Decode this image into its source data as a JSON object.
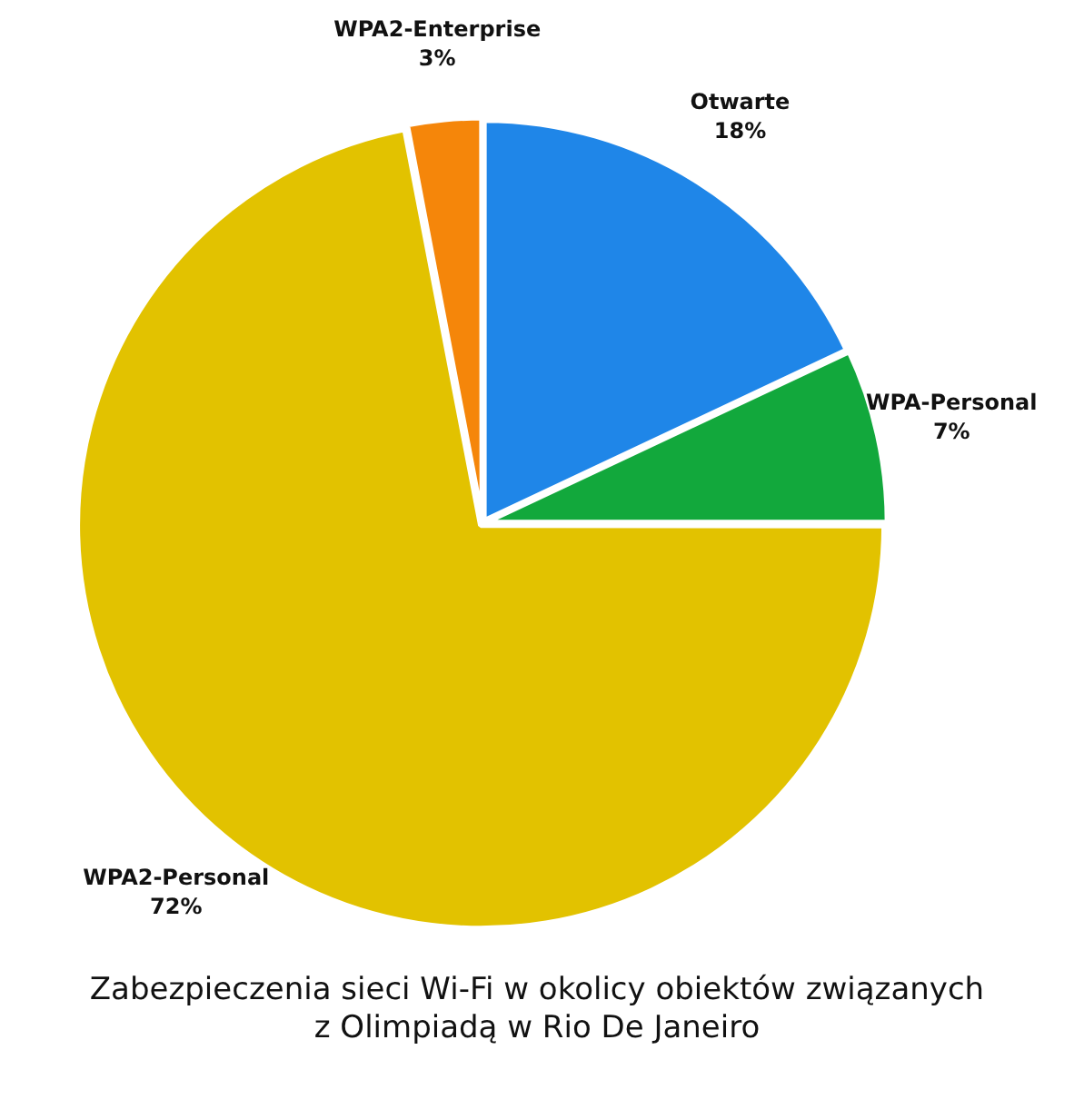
{
  "chart_data": {
    "type": "pie",
    "title": "Zabezpieczenia sieci Wi-Fi w okolicy obiektów związanych\nz Olimpiadą w Rio De Janeiro",
    "categories": [
      "Otwarte",
      "WPA-Personal",
      "WPA2-Personal",
      "WPA2-Enterprise"
    ],
    "values": [
      18,
      7,
      72,
      3
    ],
    "value_labels": [
      "18%",
      "7%",
      "72%",
      "3%"
    ],
    "colors": [
      "#1f86e8",
      "#12a83c",
      "#e2c200",
      "#f5860a"
    ],
    "legend": false
  }
}
